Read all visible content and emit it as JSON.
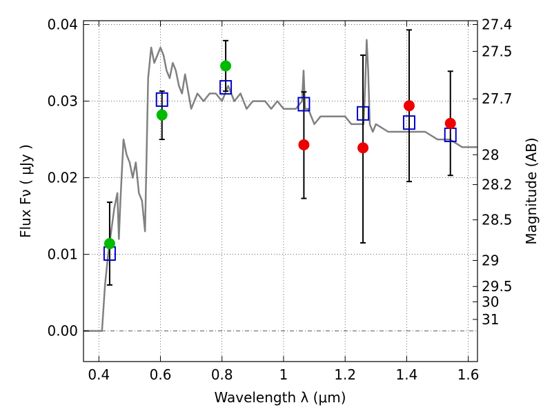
{
  "chart_data": {
    "type": "scatter",
    "xlabel": "Wavelength  λ (μm)",
    "ylabel": "Flux  Fν  ( μJy )",
    "y2label": "Magnitude (AB)",
    "xlim": [
      0.35,
      1.63
    ],
    "ylim": [
      -0.004,
      0.0405
    ],
    "grid": true,
    "x_ticks": [
      0.4,
      0.6,
      0.8,
      1.0,
      1.2,
      1.4,
      1.6
    ],
    "x_tick_labels": [
      "0.4",
      "0.6",
      "0.8",
      "1",
      "1.2",
      "1.4",
      "1.6"
    ],
    "y_ticks": [
      0.0,
      0.01,
      0.02,
      0.03,
      0.04
    ],
    "y_tick_labels": [
      "0.00",
      "0.01",
      "0.02",
      "0.03",
      "0.04"
    ],
    "mag_ticks": [
      {
        "label": "27.4",
        "flux": 0.04
      },
      {
        "label": "27.5",
        "flux": 0.0365
      },
      {
        "label": "27.7",
        "flux": 0.0303
      },
      {
        "label": "28",
        "flux": 0.023
      },
      {
        "label": "28.2",
        "flux": 0.0191
      },
      {
        "label": "28.5",
        "flux": 0.0145
      },
      {
        "label": "29",
        "flux": 0.0092
      },
      {
        "label": "29.5",
        "flux": 0.0058
      },
      {
        "label": "30",
        "flux": 0.0038
      },
      {
        "label": "31",
        "flux": 0.0015
      }
    ],
    "series": [
      {
        "kind": "line",
        "color": "#808080",
        "x": [
          0.35,
          0.39,
          0.41,
          0.42,
          0.43,
          0.44,
          0.45,
          0.46,
          0.465,
          0.47,
          0.48,
          0.49,
          0.5,
          0.51,
          0.52,
          0.53,
          0.54,
          0.55,
          0.56,
          0.57,
          0.58,
          0.59,
          0.6,
          0.61,
          0.62,
          0.63,
          0.64,
          0.65,
          0.66,
          0.67,
          0.68,
          0.7,
          0.72,
          0.74,
          0.76,
          0.78,
          0.8,
          0.82,
          0.84,
          0.86,
          0.88,
          0.9,
          0.92,
          0.94,
          0.96,
          0.98,
          1.0,
          1.02,
          1.04,
          1.06,
          1.065,
          1.07,
          1.08,
          1.1,
          1.12,
          1.14,
          1.16,
          1.18,
          1.2,
          1.22,
          1.24,
          1.26,
          1.265,
          1.27,
          1.275,
          1.28,
          1.29,
          1.3,
          1.34,
          1.38,
          1.42,
          1.46,
          1.5,
          1.54,
          1.58,
          1.63
        ],
        "y": [
          0.0,
          0.0,
          0.0,
          0.006,
          0.01,
          0.013,
          0.016,
          0.018,
          0.012,
          0.017,
          0.025,
          0.023,
          0.022,
          0.02,
          0.022,
          0.018,
          0.017,
          0.013,
          0.033,
          0.037,
          0.035,
          0.036,
          0.037,
          0.036,
          0.034,
          0.033,
          0.035,
          0.034,
          0.032,
          0.031,
          0.0335,
          0.029,
          0.031,
          0.03,
          0.031,
          0.031,
          0.03,
          0.032,
          0.03,
          0.031,
          0.029,
          0.03,
          0.03,
          0.03,
          0.029,
          0.03,
          0.029,
          0.029,
          0.029,
          0.03,
          0.034,
          0.029,
          0.029,
          0.027,
          0.028,
          0.028,
          0.028,
          0.028,
          0.028,
          0.027,
          0.027,
          0.027,
          0.032,
          0.038,
          0.034,
          0.027,
          0.026,
          0.027,
          0.026,
          0.026,
          0.026,
          0.026,
          0.025,
          0.025,
          0.024,
          0.024
        ]
      },
      {
        "kind": "errorbar",
        "color": "#000000",
        "x": [
          0.435,
          0.605,
          0.812,
          1.066,
          1.258,
          1.408,
          1.542
        ],
        "low": [
          0.006,
          0.025,
          0.0313,
          0.0173,
          0.0115,
          0.0195,
          0.0203
        ],
        "high": [
          0.0168,
          0.0313,
          0.0379,
          0.0312,
          0.036,
          0.0393,
          0.0339
        ]
      },
      {
        "kind": "scatter",
        "marker": "square",
        "color": "#0000cc",
        "x": [
          0.435,
          0.605,
          0.812,
          1.066,
          1.258,
          1.408,
          1.542
        ],
        "y": [
          0.0101,
          0.0302,
          0.0318,
          0.0296,
          0.0284,
          0.0272,
          0.0256
        ]
      },
      {
        "kind": "scatter",
        "marker": "circle",
        "color": "#00bb00",
        "x": [
          0.435,
          0.605,
          0.812
        ],
        "y": [
          0.0114,
          0.0282,
          0.0346
        ]
      },
      {
        "kind": "scatter",
        "marker": "circle",
        "color": "#ee0000",
        "x": [
          1.066,
          1.258,
          1.408,
          1.542
        ],
        "y": [
          0.0243,
          0.0239,
          0.0294,
          0.0271
        ]
      }
    ]
  }
}
